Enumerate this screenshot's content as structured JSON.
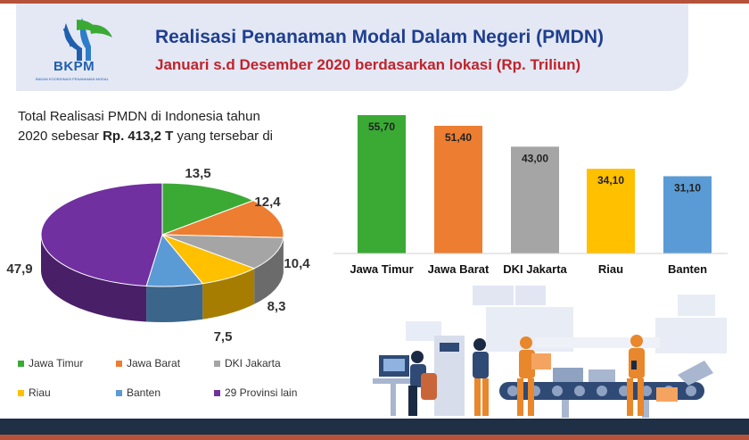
{
  "header": {
    "logo_text": "BKPM",
    "logo_subtext": "BADAN KOORDINASI PENANAMAN MODAL",
    "title": "Realisasi Penanaman Modal Dalam Negeri (PMDN)",
    "subtitle": "Januari s.d Desember 2020 berdasarkan lokasi (Rp. Triliun)"
  },
  "intro": {
    "line1": "Total Realisasi PMDN di Indonesia tahun",
    "line2_prefix": "2020 sebesar ",
    "line2_bold": "Rp. 413,2 T",
    "line2_suffix": " yang tersebar di"
  },
  "colors": {
    "jawa_timur": "#3aaa35",
    "jawa_barat": "#ed7d31",
    "dki_jakarta": "#a5a5a5",
    "riau": "#ffc000",
    "banten": "#5b9bd5",
    "provinsi_lain": "#7030a0",
    "header_bg": "#e4e8f5",
    "title_blue": "#1f3f8f",
    "subtitle_red": "#c0232b"
  },
  "chart_data": [
    {
      "type": "pie",
      "labels": [
        "Jawa Timur",
        "Jawa Barat",
        "DKI Jakarta",
        "Riau",
        "Banten",
        "29 Provinsi lain"
      ],
      "values": [
        13.5,
        12.4,
        10.4,
        8.3,
        7.5,
        47.9
      ],
      "data_labels": [
        "13,5",
        "12,4",
        "10,4",
        "8,3",
        "7,5",
        "47,9"
      ],
      "legend_placement": "bottom"
    },
    {
      "type": "bar",
      "categories": [
        "Jawa Timur",
        "Jawa Barat",
        "DKI Jakarta",
        "Riau",
        "Banten"
      ],
      "values": [
        55.7,
        51.4,
        43.0,
        34.1,
        31.1
      ],
      "data_labels": [
        "55,70",
        "51,40",
        "43,00",
        "34,10",
        "31,10"
      ],
      "grid": false
    }
  ]
}
